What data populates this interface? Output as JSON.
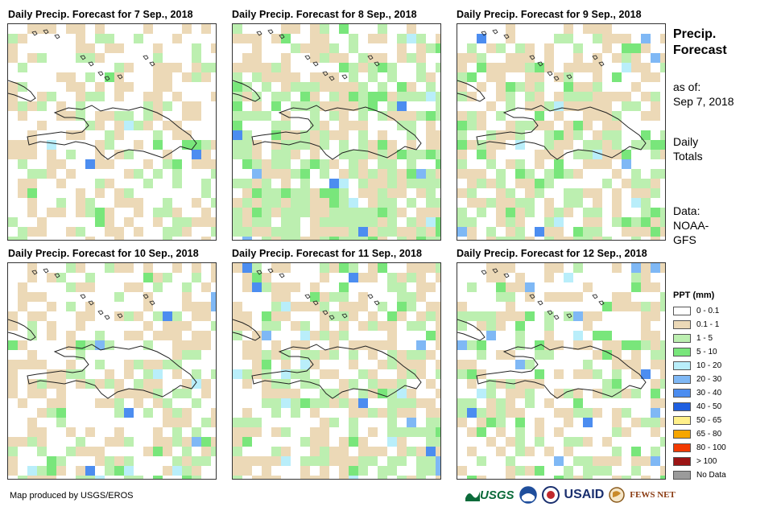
{
  "panels": [
    {
      "title": "Daily Precip. Forecast for 7 Sep., 2018"
    },
    {
      "title": "Daily Precip. Forecast for 8 Sep., 2018"
    },
    {
      "title": "Daily Precip. Forecast for 9 Sep., 2018"
    },
    {
      "title": "Daily Precip. Forecast for 10 Sep., 2018"
    },
    {
      "title": "Daily Precip. Forecast for 11 Sep., 2018"
    },
    {
      "title": "Daily Precip. Forecast for 12 Sep., 2018"
    }
  ],
  "side": {
    "title_line1": "Precip.",
    "title_line2": "Forecast",
    "asof_line1": "as of:",
    "asof_line2": "Sep 7, 2018",
    "daily_line1": "Daily",
    "daily_line2": "Totals",
    "data_line1": "Data:",
    "data_line2": "NOAA-",
    "data_line3": "GFS"
  },
  "legend": {
    "title": "PPT (mm)",
    "items": [
      {
        "label": "0 - 0.1",
        "color": "#ffffff"
      },
      {
        "label": "0.1 - 1",
        "color": "#ecd9b7"
      },
      {
        "label": "1 - 5",
        "color": "#bcefb0"
      },
      {
        "label": "5 - 10",
        "color": "#79e67b"
      },
      {
        "label": "10 - 20",
        "color": "#b9eefa"
      },
      {
        "label": "20 - 30",
        "color": "#7fb8f5"
      },
      {
        "label": "30 - 40",
        "color": "#4c8df0"
      },
      {
        "label": "40 - 50",
        "color": "#1f5fe0"
      },
      {
        "label": "50 - 65",
        "color": "#fff08a"
      },
      {
        "label": "65 - 80",
        "color": "#f7a600"
      },
      {
        "label": "80 - 100",
        "color": "#f23a00"
      },
      {
        "label": "> 100",
        "color": "#9c1515"
      },
      {
        "label": "No Data",
        "color": "#9b9b9b"
      }
    ]
  },
  "credit": "Map produced by USGS/EROS",
  "logos": {
    "usgs": "USGS",
    "usaid": "USAID",
    "fewsnet": "FEWS NET"
  }
}
